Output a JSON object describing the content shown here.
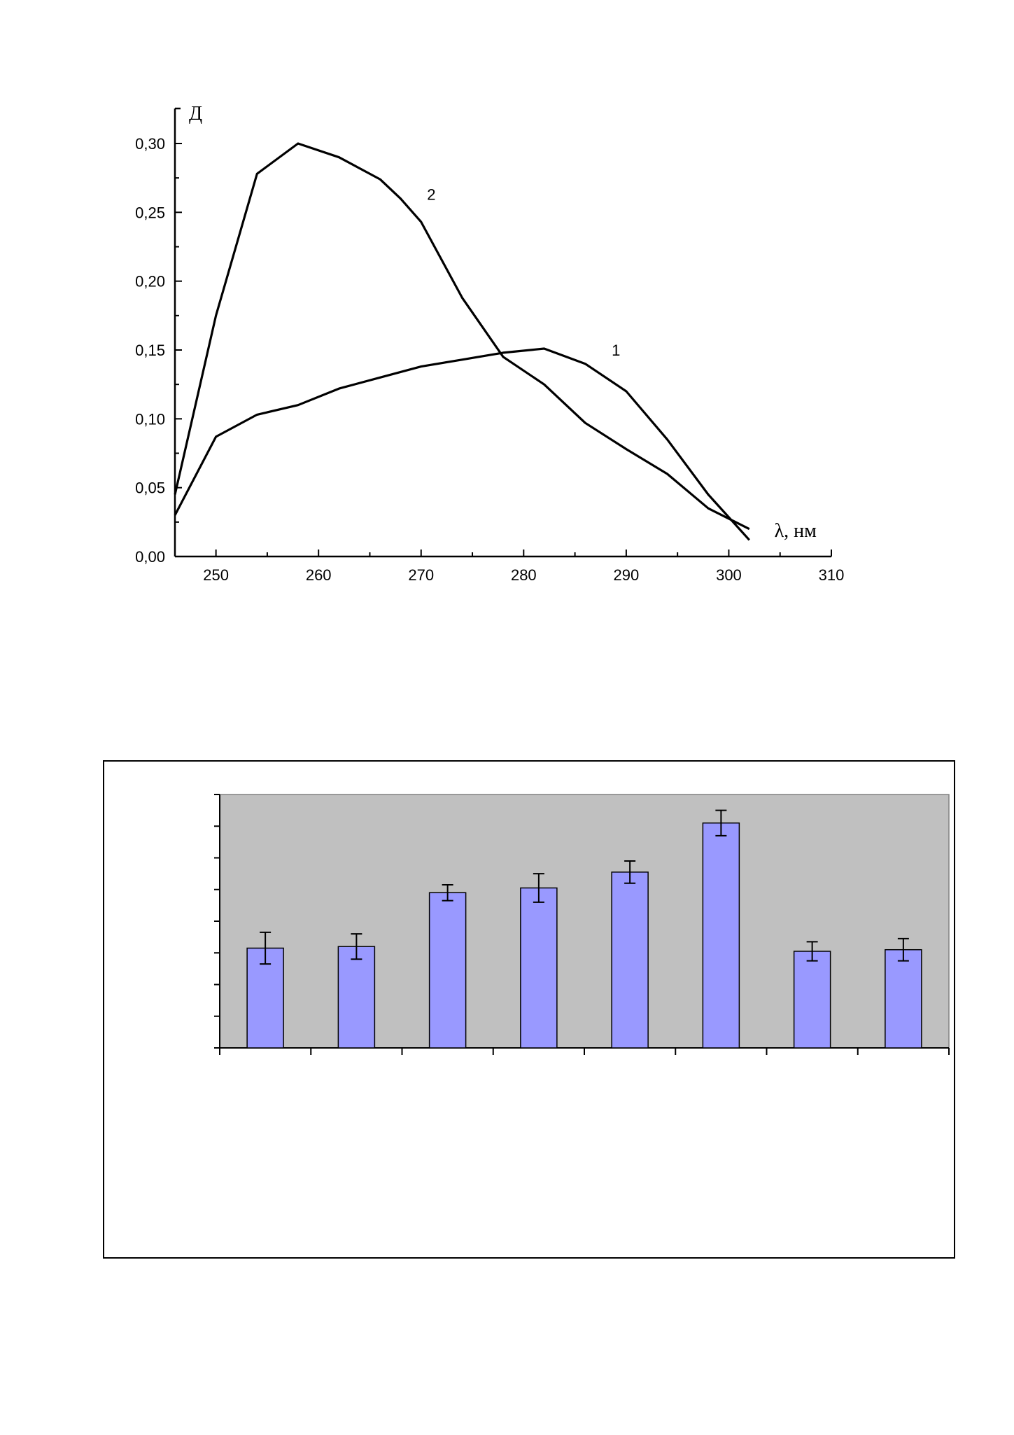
{
  "chart_data": [
    {
      "type": "line",
      "xlabel": "λ, нм",
      "ylabel": "Д",
      "xlim": [
        246,
        310
      ],
      "ylim": [
        0,
        0.32
      ],
      "x_ticks": [
        250,
        260,
        270,
        280,
        290,
        300,
        310
      ],
      "x_tick_labels": [
        "250",
        "260",
        "270",
        "280",
        "290",
        "300",
        "310"
      ],
      "y_ticks": [
        0,
        0.05,
        0.1,
        0.15,
        0.2,
        0.25,
        0.3
      ],
      "y_tick_labels": [
        "0,00",
        "0,05",
        "0,10",
        "0,15",
        "0,20",
        "0,25",
        "0,30"
      ],
      "grid": false,
      "series": [
        {
          "name": "1",
          "x": [
            246,
            250,
            254,
            258,
            262,
            266,
            270,
            274,
            278,
            282,
            286,
            290,
            294,
            298,
            302
          ],
          "y": [
            0.03,
            0.087,
            0.103,
            0.11,
            0.122,
            0.13,
            0.138,
            0.143,
            0.148,
            0.151,
            0.14,
            0.12,
            0.085,
            0.045,
            0.012
          ]
        },
        {
          "name": "2",
          "x": [
            246,
            250,
            254,
            258,
            262,
            266,
            268,
            270,
            274,
            278,
            282,
            286,
            290,
            294,
            298,
            302
          ],
          "y": [
            0.045,
            0.175,
            0.278,
            0.3,
            0.29,
            0.274,
            0.26,
            0.243,
            0.188,
            0.145,
            0.125,
            0.097,
            0.078,
            0.06,
            0.035,
            0.02
          ]
        }
      ]
    },
    {
      "type": "bar",
      "categories": [
        "",
        "",
        "",
        "",
        "",
        "",
        "",
        ""
      ],
      "ylim": [
        0,
        8
      ],
      "y_ticks": [
        0,
        1,
        2,
        3,
        4,
        5,
        6,
        7,
        8
      ],
      "grid": false,
      "plot_background": "#C0C0C0",
      "bar_color": "#9999FF",
      "series": [
        {
          "values": [
            3.15,
            3.2,
            4.9,
            5.05,
            5.55,
            7.1,
            3.05,
            3.1
          ],
          "errors": [
            0.5,
            0.4,
            0.25,
            0.45,
            0.35,
            0.4,
            0.3,
            0.35
          ]
        }
      ]
    }
  ]
}
